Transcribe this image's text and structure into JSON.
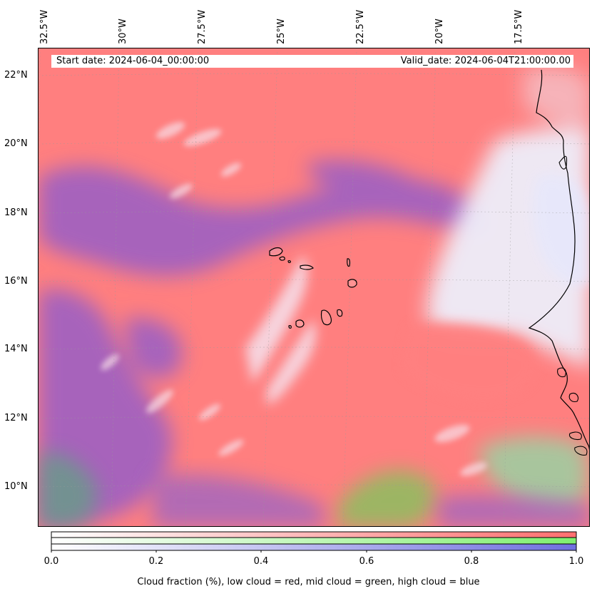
{
  "map": {
    "start_date": "Start date: 2024-06-04_00:00:00",
    "valid_date": "Valid_date: 2024-06-04T21:00:00.00",
    "lon_labels": [
      "32.5°W",
      "30°W",
      "27.5°W",
      "25°W",
      "22.5°W",
      "20°W",
      "17.5°W"
    ],
    "lat_labels": [
      "22°N",
      "20°N",
      "18°N",
      "16°N",
      "14°N",
      "12°N",
      "10°N"
    ],
    "colors": {
      "low_cloud": "#ff7f7f",
      "mid_cloud": "#7fef6f",
      "high_cloud": "#6f6fdf",
      "coastline": "#000000"
    }
  },
  "colorbar": {
    "ticks": [
      "0.0",
      "0.2",
      "0.4",
      "0.6",
      "0.8",
      "1.0"
    ],
    "caption": "Cloud fraction (%), low cloud = red, mid cloud = green, high cloud = blue"
  }
}
